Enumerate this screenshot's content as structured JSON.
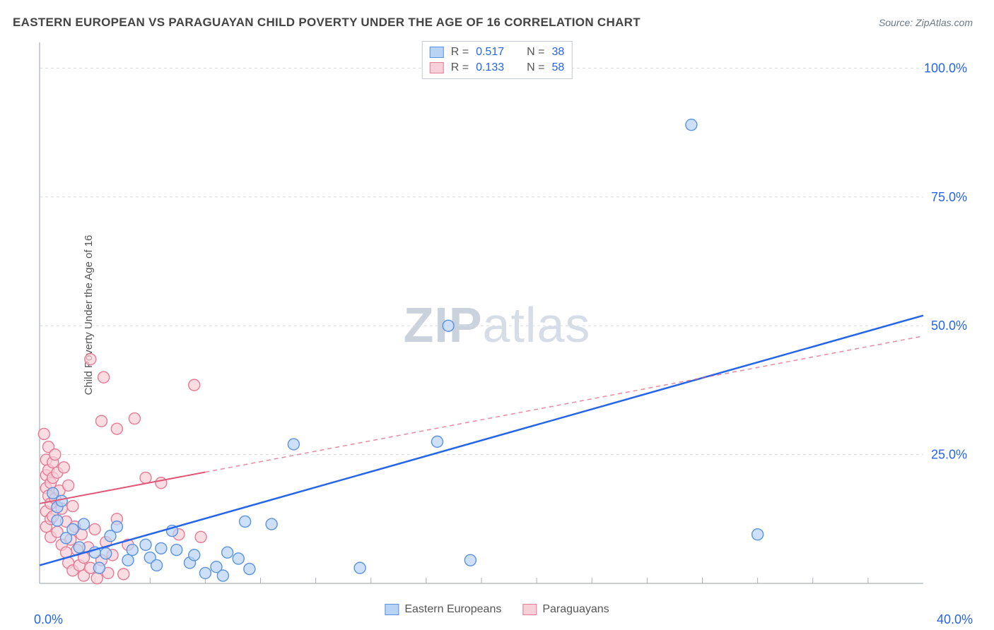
{
  "title": "EASTERN EUROPEAN VS PARAGUAYAN CHILD POVERTY UNDER THE AGE OF 16 CORRELATION CHART",
  "source_label": "Source: ZipAtlas.com",
  "y_axis_label": "Child Poverty Under the Age of 16",
  "watermark_bold": "ZIP",
  "watermark_light": "atlas",
  "chart": {
    "type": "scatter",
    "xlim": [
      0,
      40
    ],
    "ylim": [
      0,
      105
    ],
    "x_origin_label": "0.0%",
    "x_end_label": "40.0%",
    "y_tick_labels": [
      "25.0%",
      "50.0%",
      "75.0%",
      "100.0%"
    ],
    "y_tick_values": [
      25,
      50,
      75,
      100
    ],
    "x_minor_ticks": [
      2.5,
      5,
      7.5,
      10,
      12.5,
      15,
      17.5,
      20,
      22.5,
      25,
      27.5,
      30,
      32.5,
      35,
      37.5
    ],
    "background_color": "#ffffff",
    "grid_color": "#dadee3",
    "axis_color": "#a9b0b9",
    "series": [
      {
        "name": "Eastern Europeans",
        "marker_fill": "#b9d3f4",
        "marker_stroke": "#5a93de",
        "marker_radius": 8,
        "trend_color": "#2566e8",
        "trend_width": 2.5,
        "trend_solid_to_x": 40,
        "trend_line": {
          "x1": 0,
          "y1": 3.5,
          "x2": 40,
          "y2": 52
        },
        "R": 0.517,
        "N": 38,
        "points": [
          {
            "x": 0.6,
            "y": 17.5
          },
          {
            "x": 0.8,
            "y": 14.8
          },
          {
            "x": 0.8,
            "y": 12.2
          },
          {
            "x": 1.0,
            "y": 16.0
          },
          {
            "x": 1.2,
            "y": 8.8
          },
          {
            "x": 1.5,
            "y": 10.5
          },
          {
            "x": 1.8,
            "y": 7.0
          },
          {
            "x": 2.0,
            "y": 11.5
          },
          {
            "x": 2.5,
            "y": 6.0
          },
          {
            "x": 2.7,
            "y": 3.0
          },
          {
            "x": 3.0,
            "y": 5.8
          },
          {
            "x": 3.2,
            "y": 9.2
          },
          {
            "x": 3.5,
            "y": 11.0
          },
          {
            "x": 4.0,
            "y": 4.5
          },
          {
            "x": 4.2,
            "y": 6.5
          },
          {
            "x": 4.8,
            "y": 7.5
          },
          {
            "x": 5.0,
            "y": 5.0
          },
          {
            "x": 5.3,
            "y": 3.5
          },
          {
            "x": 5.5,
            "y": 6.8
          },
          {
            "x": 6.0,
            "y": 10.2
          },
          {
            "x": 6.2,
            "y": 6.5
          },
          {
            "x": 6.8,
            "y": 4.0
          },
          {
            "x": 7.0,
            "y": 5.5
          },
          {
            "x": 7.5,
            "y": 2.0
          },
          {
            "x": 8.0,
            "y": 3.2
          },
          {
            "x": 8.3,
            "y": 1.5
          },
          {
            "x": 8.5,
            "y": 6.0
          },
          {
            "x": 9.0,
            "y": 4.8
          },
          {
            "x": 9.3,
            "y": 12.0
          },
          {
            "x": 9.5,
            "y": 2.8
          },
          {
            "x": 10.5,
            "y": 11.5
          },
          {
            "x": 11.5,
            "y": 27.0
          },
          {
            "x": 14.5,
            "y": 3.0
          },
          {
            "x": 18.0,
            "y": 27.5
          },
          {
            "x": 18.5,
            "y": 50.0
          },
          {
            "x": 19.5,
            "y": 4.5
          },
          {
            "x": 29.5,
            "y": 89.0
          },
          {
            "x": 32.5,
            "y": 9.5
          }
        ]
      },
      {
        "name": "Paraguayans",
        "marker_fill": "#f7cfd7",
        "marker_stroke": "#e77a94",
        "marker_radius": 8,
        "trend_color": "#e25577",
        "trend_width": 2,
        "trend_solid_to_x": 7.5,
        "trend_line": {
          "x1": 0,
          "y1": 15.5,
          "x2": 40,
          "y2": 48
        },
        "R": 0.133,
        "N": 58,
        "points": [
          {
            "x": 0.2,
            "y": 29.0
          },
          {
            "x": 0.3,
            "y": 24.0
          },
          {
            "x": 0.3,
            "y": 21.0
          },
          {
            "x": 0.3,
            "y": 18.5
          },
          {
            "x": 0.3,
            "y": 14.0
          },
          {
            "x": 0.3,
            "y": 11.0
          },
          {
            "x": 0.4,
            "y": 26.5
          },
          {
            "x": 0.4,
            "y": 22.0
          },
          {
            "x": 0.4,
            "y": 17.0
          },
          {
            "x": 0.5,
            "y": 19.5
          },
          {
            "x": 0.5,
            "y": 15.5
          },
          {
            "x": 0.5,
            "y": 12.5
          },
          {
            "x": 0.5,
            "y": 9.0
          },
          {
            "x": 0.6,
            "y": 23.5
          },
          {
            "x": 0.6,
            "y": 20.5
          },
          {
            "x": 0.6,
            "y": 13.0
          },
          {
            "x": 0.7,
            "y": 25.0
          },
          {
            "x": 0.7,
            "y": 16.5
          },
          {
            "x": 0.8,
            "y": 21.5
          },
          {
            "x": 0.8,
            "y": 10.0
          },
          {
            "x": 0.9,
            "y": 18.0
          },
          {
            "x": 1.0,
            "y": 7.5
          },
          {
            "x": 1.0,
            "y": 14.5
          },
          {
            "x": 1.1,
            "y": 22.5
          },
          {
            "x": 1.2,
            "y": 6.0
          },
          {
            "x": 1.2,
            "y": 12.0
          },
          {
            "x": 1.3,
            "y": 19.0
          },
          {
            "x": 1.3,
            "y": 4.0
          },
          {
            "x": 1.4,
            "y": 8.5
          },
          {
            "x": 1.5,
            "y": 15.0
          },
          {
            "x": 1.5,
            "y": 2.5
          },
          {
            "x": 1.6,
            "y": 11.0
          },
          {
            "x": 1.7,
            "y": 6.5
          },
          {
            "x": 1.8,
            "y": 3.5
          },
          {
            "x": 1.9,
            "y": 9.5
          },
          {
            "x": 2.0,
            "y": 5.0
          },
          {
            "x": 2.0,
            "y": 1.5
          },
          {
            "x": 2.2,
            "y": 7.0
          },
          {
            "x": 2.3,
            "y": 3.0
          },
          {
            "x": 2.3,
            "y": 43.5
          },
          {
            "x": 2.5,
            "y": 10.5
          },
          {
            "x": 2.6,
            "y": 1.0
          },
          {
            "x": 2.8,
            "y": 4.5
          },
          {
            "x": 2.8,
            "y": 31.5
          },
          {
            "x": 2.9,
            "y": 40.0
          },
          {
            "x": 3.0,
            "y": 8.0
          },
          {
            "x": 3.1,
            "y": 2.0
          },
          {
            "x": 3.3,
            "y": 5.5
          },
          {
            "x": 3.5,
            "y": 30.0
          },
          {
            "x": 3.5,
            "y": 12.5
          },
          {
            "x": 3.8,
            "y": 1.8
          },
          {
            "x": 4.0,
            "y": 7.5
          },
          {
            "x": 4.3,
            "y": 32.0
          },
          {
            "x": 4.8,
            "y": 20.5
          },
          {
            "x": 5.5,
            "y": 19.5
          },
          {
            "x": 6.3,
            "y": 9.5
          },
          {
            "x": 7.0,
            "y": 38.5
          },
          {
            "x": 7.3,
            "y": 9.0
          }
        ]
      }
    ],
    "legend_top": {
      "r_label": "R =",
      "n_label": "N ="
    },
    "legend_bottom_labels": [
      "Eastern Europeans",
      "Paraguayans"
    ]
  }
}
